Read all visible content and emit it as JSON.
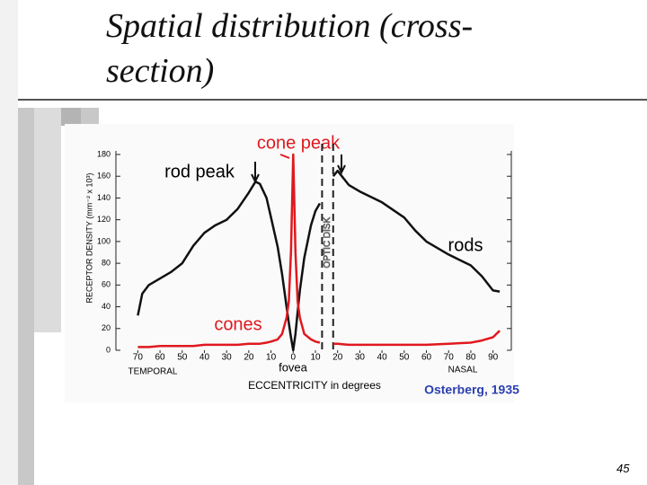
{
  "slide": {
    "title": "Spatial distribution (cross-section)",
    "page_number": "45"
  },
  "chart_data": {
    "type": "line",
    "y_label": "RECEPTOR DENSITY (mm⁻² x 10³)",
    "x_label": "ECCENTRICITY in degrees",
    "annotations": {
      "cone_peak": "cone peak",
      "rod_peak": "rod peak",
      "rods": "rods",
      "cones": "cones",
      "fovea": "fovea",
      "temporal": "TEMPORAL",
      "nasal": "NASAL",
      "source": "Osterberg, 1935"
    },
    "optic_disk": {
      "label": "OPTIC DISK",
      "x": [
        13,
        18
      ]
    },
    "x": [
      -70,
      -68,
      -65,
      -60,
      -55,
      -50,
      -45,
      -40,
      -35,
      -30,
      -25,
      -20,
      -17,
      -15,
      -12,
      -10,
      -7,
      -5,
      -3,
      -2,
      -1,
      0,
      1,
      2,
      3,
      5,
      8,
      10,
      12,
      14,
      16,
      18,
      20,
      25,
      30,
      40,
      50,
      55,
      60,
      70,
      80,
      85,
      90,
      93
    ],
    "series": [
      {
        "name": "rods",
        "color": "#111111",
        "values": [
          32,
          52,
          60,
          66,
          72,
          80,
          96,
          108,
          115,
          120,
          130,
          145,
          155,
          153,
          140,
          122,
          95,
          70,
          40,
          25,
          12,
          0,
          15,
          35,
          55,
          85,
          115,
          128,
          135,
          null,
          null,
          160,
          165,
          152,
          146,
          136,
          122,
          110,
          100,
          88,
          78,
          68,
          55,
          54
        ]
      },
      {
        "name": "cones",
        "color": "#e0191f",
        "values": [
          3,
          3,
          3,
          4,
          4,
          4,
          4,
          5,
          5,
          5,
          5,
          6,
          6,
          6,
          7,
          8,
          10,
          15,
          30,
          45,
          90,
          180,
          90,
          45,
          30,
          15,
          10,
          8,
          7,
          null,
          null,
          6,
          6,
          5,
          5,
          5,
          5,
          5,
          5,
          6,
          7,
          9,
          12,
          18
        ]
      }
    ],
    "xlim": [
      -75,
      95
    ],
    "xticks": [
      {
        "value": -70,
        "label": "70"
      },
      {
        "value": -60,
        "label": "60"
      },
      {
        "value": -50,
        "label": "50"
      },
      {
        "value": -40,
        "label": "40"
      },
      {
        "value": -30,
        "label": "30"
      },
      {
        "value": -20,
        "label": "20"
      },
      {
        "value": -10,
        "label": "10"
      },
      0,
      10,
      20,
      30,
      40,
      50,
      60,
      70,
      80,
      90
    ],
    "ylim": [
      0,
      180
    ],
    "yticks": [
      0,
      20,
      40,
      60,
      80,
      100,
      120,
      140,
      160,
      180
    ]
  }
}
